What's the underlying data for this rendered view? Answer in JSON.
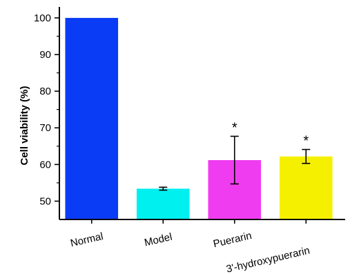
{
  "chart_data": {
    "type": "bar",
    "title": "",
    "xlabel": "",
    "ylabel": "Cell viability (%)",
    "ylim": [
      45,
      103
    ],
    "yticks": [
      50,
      60,
      70,
      80,
      90,
      100
    ],
    "grid": false,
    "categories": [
      "Normal",
      "Model",
      "Puerarin",
      "3'-hydroxypuerarin"
    ],
    "values": [
      100,
      53.4,
      61.2,
      62.2
    ],
    "errors": [
      0,
      0.4,
      6.5,
      1.9
    ],
    "colors": [
      "#0a3cf5",
      "#00f0f0",
      "#f03cf0",
      "#f5f000"
    ],
    "significance": [
      "",
      "",
      "*",
      "*"
    ]
  }
}
